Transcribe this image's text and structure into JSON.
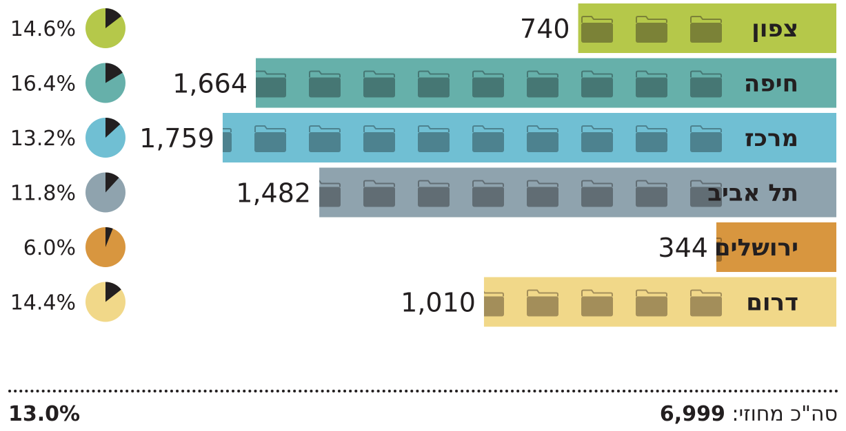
{
  "chart_data": {
    "type": "bar",
    "orientation": "horizontal",
    "direction": "rtl",
    "rows": [
      {
        "label": "צפון",
        "value": 740,
        "value_label": "740",
        "pct": 14.6,
        "pct_label": "14.6%",
        "color": "#b5c84a",
        "icon_color": "#7b8237"
      },
      {
        "label": "חיפה",
        "value": 1664,
        "value_label": "1,664",
        "pct": 16.4,
        "pct_label": "16.4%",
        "color": "#66b0aa",
        "icon_color": "#467774"
      },
      {
        "label": "מרכז",
        "value": 1759,
        "value_label": "1,759",
        "pct": 13.2,
        "pct_label": "13.2%",
        "color": "#70bfd3",
        "icon_color": "#4d828f"
      },
      {
        "label": "תל אביב",
        "value": 1482,
        "value_label": "1,482",
        "pct": 11.8,
        "pct_label": "11.8%",
        "color": "#8fa3ae",
        "icon_color": "#616d74"
      },
      {
        "label": "ירושלים",
        "value": 344,
        "value_label": "344",
        "pct": 6.0,
        "pct_label": "6.0%",
        "color": "#d8963f",
        "icon_color": "#94672a"
      },
      {
        "label": "דרום",
        "value": 1010,
        "value_label": "1,010",
        "pct": 14.4,
        "pct_label": "14.4%",
        "color": "#f1d889",
        "icon_color": "#a38e5a"
      }
    ],
    "pie_wedge_color": "#231f20",
    "total_label": "סה\"כ מחוזי:",
    "total_value": "6,999",
    "total_pct": "13.0%"
  }
}
